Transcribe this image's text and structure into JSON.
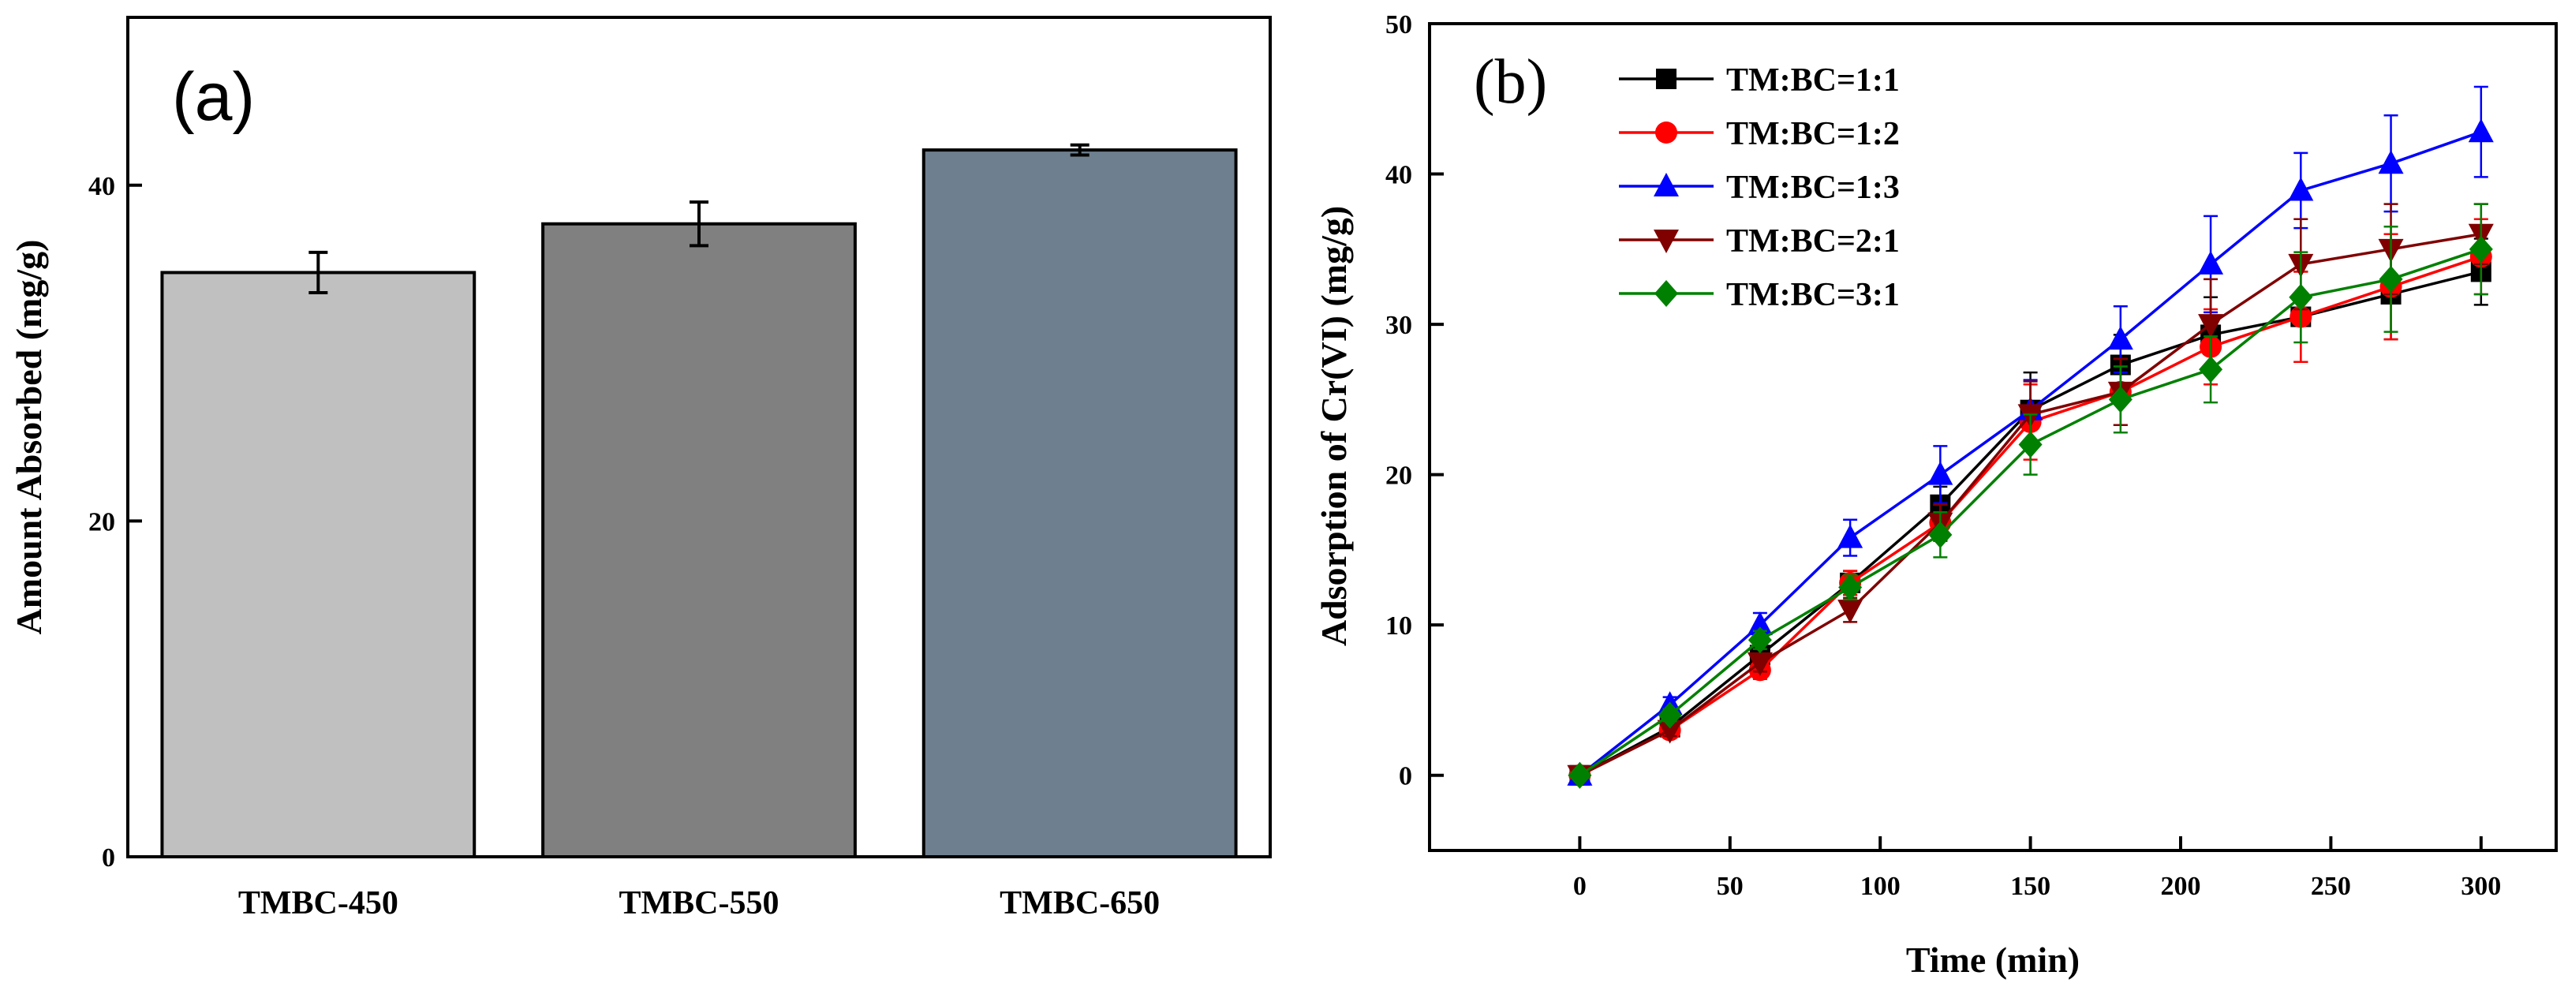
{
  "chart_data": [
    {
      "type": "bar",
      "panel_label": "(a)",
      "categories": [
        "TMBC-450",
        "TMBC-550",
        "TMBC-650"
      ],
      "values": [
        34.8,
        37.7,
        42.1
      ],
      "errors": [
        1.2,
        1.3,
        0.3
      ],
      "colors": [
        "#c0c0c0",
        "#808080",
        "#6e7f8f"
      ],
      "xlabel": "",
      "ylabel": "Amount Absorbed (mg/g)",
      "ylim": [
        0,
        50
      ],
      "yticks": [
        0,
        20,
        40
      ],
      "ytick_labels": [
        "0",
        "20",
        "40"
      ]
    },
    {
      "type": "line",
      "panel_label": "(b)",
      "x": [
        0,
        30,
        60,
        90,
        120,
        150,
        180,
        210,
        240,
        270,
        300
      ],
      "xlabel": "Time (min)",
      "ylabel": "Adsorption of Cr(VI) (mg/g)",
      "xlim": [
        -50,
        325
      ],
      "ylim": [
        -5,
        50
      ],
      "xticks": [
        0,
        50,
        100,
        150,
        200,
        250,
        300
      ],
      "xtick_labels": [
        "0",
        "50",
        "100",
        "150",
        "200",
        "250",
        "300"
      ],
      "yticks": [
        0,
        10,
        20,
        30,
        40,
        50
      ],
      "ytick_labels": [
        "0",
        "10",
        "20",
        "30",
        "40",
        "50"
      ],
      "legend_position": "top-left",
      "series": [
        {
          "name": "TM:BC=1:1",
          "color": "#000000",
          "marker": "square",
          "values": [
            0,
            3.2,
            8.0,
            12.8,
            18.0,
            24.3,
            27.3,
            29.3,
            30.5,
            32.0,
            33.5
          ],
          "errors": [
            0,
            0.4,
            0.6,
            0.8,
            1.2,
            2.5,
            2.0,
            2.5,
            3.0,
            3.0,
            2.2
          ]
        },
        {
          "name": "TM:BC=1:2",
          "color": "#ff0000",
          "marker": "circle",
          "values": [
            0,
            3.0,
            7.0,
            12.8,
            16.8,
            23.5,
            25.5,
            28.5,
            30.5,
            32.5,
            34.5
          ],
          "errors": [
            0,
            0.4,
            0.6,
            0.8,
            1.2,
            2.5,
            2.2,
            2.5,
            3.0,
            3.5,
            2.5
          ]
        },
        {
          "name": "TM:BC=1:3",
          "color": "#0000ff",
          "marker": "triangle-up",
          "values": [
            0,
            4.7,
            10.0,
            15.8,
            20.0,
            24.3,
            29.0,
            34.0,
            38.9,
            40.7,
            42.8
          ],
          "errors": [
            0,
            0.5,
            0.8,
            1.2,
            1.9,
            2.0,
            2.2,
            3.2,
            2.5,
            3.2,
            3.0
          ]
        },
        {
          "name": "TM:BC=2:1",
          "color": "#800000",
          "marker": "triangle-down",
          "values": [
            0,
            3.0,
            7.5,
            11.0,
            16.8,
            24.0,
            25.5,
            30.0,
            34.0,
            35.0,
            36.0
          ],
          "errors": [
            0,
            0.4,
            0.6,
            0.8,
            1.2,
            2.2,
            2.2,
            3.0,
            3.0,
            3.0,
            2.0
          ]
        },
        {
          "name": "TM:BC=3:1",
          "color": "#008000",
          "marker": "diamond",
          "values": [
            0,
            4.0,
            9.0,
            12.5,
            16.0,
            22.0,
            25.0,
            27.0,
            31.8,
            33.0,
            35.0
          ],
          "errors": [
            0,
            0.4,
            0.6,
            0.8,
            1.5,
            2.0,
            2.2,
            2.2,
            3.0,
            3.5,
            3.0
          ]
        }
      ]
    }
  ]
}
